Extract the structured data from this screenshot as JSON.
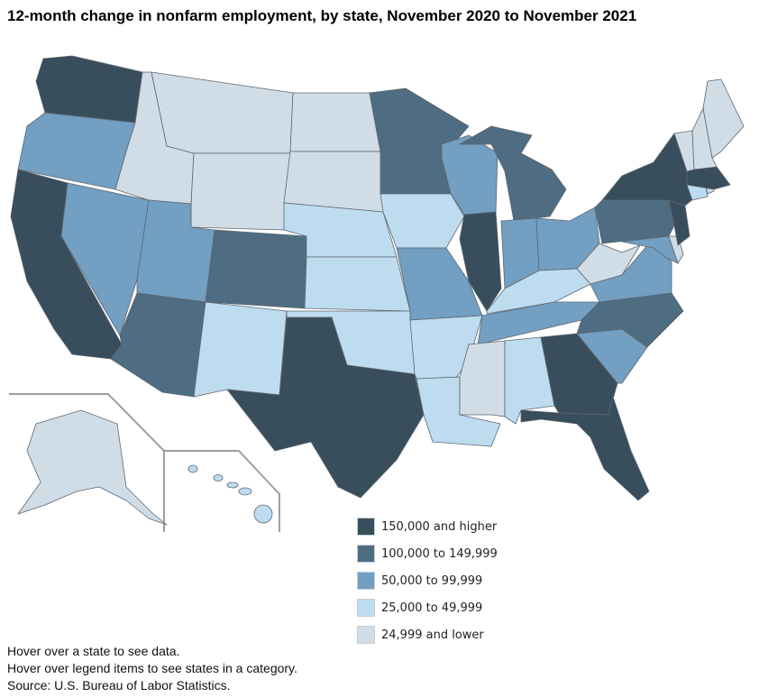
{
  "title": "12-month change in nonfarm employment, by state, November 2020 to November 2021",
  "colors": {
    "c1": "#384e5c",
    "c2": "#4e6d82",
    "c3": "#729fc2",
    "c4": "#bddcf0",
    "c5": "#d0dde6"
  },
  "legend": [
    {
      "key": "c1",
      "label": "150,000 and higher"
    },
    {
      "key": "c2",
      "label": "100,000 to 149,999"
    },
    {
      "key": "c3",
      "label": "50,000 to 99,999"
    },
    {
      "key": "c4",
      "label": "25,000 to 49,999"
    },
    {
      "key": "c5",
      "label": "24,999 and lower"
    }
  ],
  "states": {
    "WA": "c1",
    "OR": "c3",
    "CA": "c1",
    "NV": "c3",
    "ID": "c5",
    "MT": "c5",
    "WY": "c5",
    "UT": "c3",
    "AZ": "c2",
    "CO": "c2",
    "NM": "c4",
    "ND": "c5",
    "SD": "c5",
    "NE": "c4",
    "KS": "c4",
    "OK": "c4",
    "TX": "c1",
    "MN": "c2",
    "IA": "c4",
    "MO": "c3",
    "AR": "c4",
    "LA": "c4",
    "WI": "c3",
    "IL": "c1",
    "MI": "c2",
    "IN": "c3",
    "OH": "c3",
    "KY": "c4",
    "TN": "c3",
    "MS": "c5",
    "AL": "c4",
    "GA": "c1",
    "FL": "c1",
    "SC": "c3",
    "NC": "c2",
    "VA": "c3",
    "WV": "c5",
    "PA": "c2",
    "NY": "c1",
    "MD": "c3",
    "DE": "c5",
    "NJ": "c1",
    "CT": "c4",
    "RI": "c5",
    "MA": "c1",
    "VT": "c5",
    "NH": "c5",
    "ME": "c5",
    "AK": "c5",
    "HI": "c4"
  },
  "notes": [
    "Hover over a state to see data.",
    "Hover over legend items to see states in a category.",
    "Source: U.S. Bureau of Labor Statistics."
  ]
}
